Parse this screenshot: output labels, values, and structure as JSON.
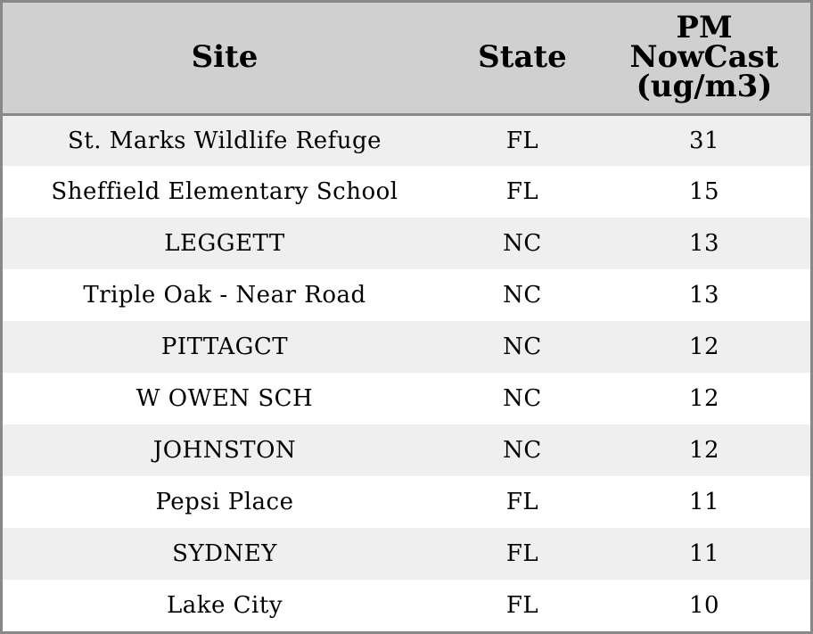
{
  "chart_data": {
    "type": "table",
    "columns": [
      "Site",
      "State",
      "PM NowCast (ug/m3)"
    ],
    "header_lines": {
      "site": [
        "Site"
      ],
      "state": [
        "State"
      ],
      "pm": [
        "PM",
        "NowCast",
        "(ug/m3)"
      ]
    },
    "rows": [
      {
        "site": "St. Marks Wildlife Refuge",
        "state": "FL",
        "pm": "31"
      },
      {
        "site": "Sheffield Elementary School",
        "state": "FL",
        "pm": "15"
      },
      {
        "site": "LEGGETT",
        "state": "NC",
        "pm": "13"
      },
      {
        "site": "Triple Oak - Near Road",
        "state": "NC",
        "pm": "13"
      },
      {
        "site": "PITTAGCT",
        "state": "NC",
        "pm": "12"
      },
      {
        "site": "W OWEN SCH",
        "state": "NC",
        "pm": "12"
      },
      {
        "site": "JOHNSTON",
        "state": "NC",
        "pm": "12"
      },
      {
        "site": "Pepsi Place",
        "state": "FL",
        "pm": "11"
      },
      {
        "site": "SYDNEY",
        "state": "FL",
        "pm": "11"
      },
      {
        "site": "Lake City",
        "state": "FL",
        "pm": "10"
      }
    ]
  },
  "colors": {
    "header_bg": "#d0d0d0",
    "row_alt_bg": "#efefef",
    "row_bg": "#ffffff",
    "border": "#888888"
  }
}
